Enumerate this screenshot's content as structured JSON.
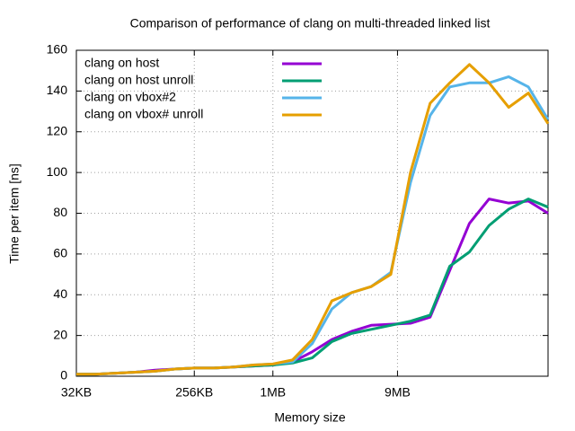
{
  "chart_data": {
    "type": "line",
    "title": "Comparison of performance of clang on multi-threaded linked list",
    "xlabel": "Memory size",
    "ylabel": "Time per item [ns]",
    "xscale": "log",
    "xlog_base": 2,
    "x": [
      32,
      45,
      64,
      91,
      128,
      181,
      256,
      362,
      512,
      724,
      1024,
      1448,
      2048,
      2896,
      4096,
      5793,
      8192,
      11585,
      16384,
      23170,
      32768,
      46341,
      65536,
      92682,
      131072
    ],
    "xlim": [
      32,
      131072
    ],
    "xticks": [
      {
        "value": 32,
        "label": "32KB"
      },
      {
        "value": 256,
        "label": "256KB"
      },
      {
        "value": 1024,
        "label": "1MB"
      },
      {
        "value": 9216,
        "label": "9MB"
      }
    ],
    "ylim": [
      0,
      160
    ],
    "yticks": [
      0,
      20,
      40,
      60,
      80,
      100,
      120,
      140,
      160
    ],
    "grid": true,
    "legend": "upper left",
    "series": [
      {
        "name": "clang on host",
        "color": "#9400d3",
        "values": [
          1,
          1,
          1.5,
          2,
          3,
          3.5,
          4,
          4,
          4.5,
          5,
          5.5,
          7,
          12,
          18,
          22,
          25,
          25.5,
          26,
          29,
          52,
          75,
          87,
          85,
          86,
          80
        ]
      },
      {
        "name": "clang on host unroll",
        "color": "#009e73",
        "values": [
          1,
          1,
          1.5,
          2,
          2.5,
          3.5,
          4,
          4,
          4.5,
          5,
          5.5,
          6.5,
          9,
          17,
          21,
          23,
          25,
          27,
          30,
          54,
          61,
          74,
          82,
          87,
          83
        ]
      },
      {
        "name": "clang on vbox#2",
        "color": "#56b4e9",
        "values": [
          1,
          1,
          1.5,
          2,
          2.5,
          3.5,
          4,
          4,
          4.5,
          5.5,
          6,
          7,
          16,
          33,
          41,
          44,
          51,
          95,
          128,
          142,
          144,
          144,
          147,
          142,
          126
        ]
      },
      {
        "name": "clang on vbox# unroll",
        "color": "#e69f00",
        "values": [
          1,
          1,
          1.5,
          2,
          2.5,
          3.5,
          4,
          4,
          4.5,
          5.5,
          6,
          8,
          18,
          37,
          41,
          44,
          50,
          100,
          134,
          144,
          153,
          144,
          132,
          139,
          124
        ]
      }
    ]
  }
}
